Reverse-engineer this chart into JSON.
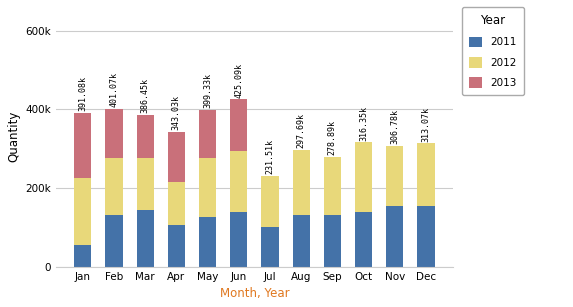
{
  "months": [
    "Jan",
    "Feb",
    "Mar",
    "Apr",
    "May",
    "Jun",
    "Jul",
    "Aug",
    "Sep",
    "Oct",
    "Nov",
    "Dec"
  ],
  "year2011": [
    55000,
    130000,
    145000,
    105000,
    125000,
    140000,
    100000,
    130000,
    130000,
    138000,
    155000,
    155000
  ],
  "year2012": [
    170000,
    145000,
    130000,
    110000,
    150000,
    155000,
    131510,
    167690,
    148890,
    178350,
    151780,
    158070
  ],
  "year2013": [
    166080,
    126070,
    111450,
    128030,
    124330,
    130090,
    0,
    0,
    0,
    0,
    0,
    0
  ],
  "totals": [
    "391.08k",
    "401.07k",
    "386.45k",
    "343.03k",
    "399.33k",
    "425.09k",
    "231.51k",
    "297.69k",
    "278.89k",
    "316.35k",
    "306.78k",
    "313.07k"
  ],
  "color2011": "#4472a8",
  "color2012": "#e8d87a",
  "color2013": "#c9707a",
  "xlabel": "Month, Year",
  "ylabel": "Quantity",
  "ylim": [
    0,
    660000
  ],
  "ytick_labels": [
    "0",
    "200k",
    "400k",
    "600k"
  ],
  "ytick_vals": [
    0,
    200000,
    400000,
    600000
  ],
  "legend_title": "Year",
  "legend_labels": [
    "2011",
    "2012",
    "2013"
  ],
  "bg_color": "#ffffff",
  "grid_color": "#cccccc",
  "xlabel_color": "#e07820",
  "bar_width": 0.55
}
